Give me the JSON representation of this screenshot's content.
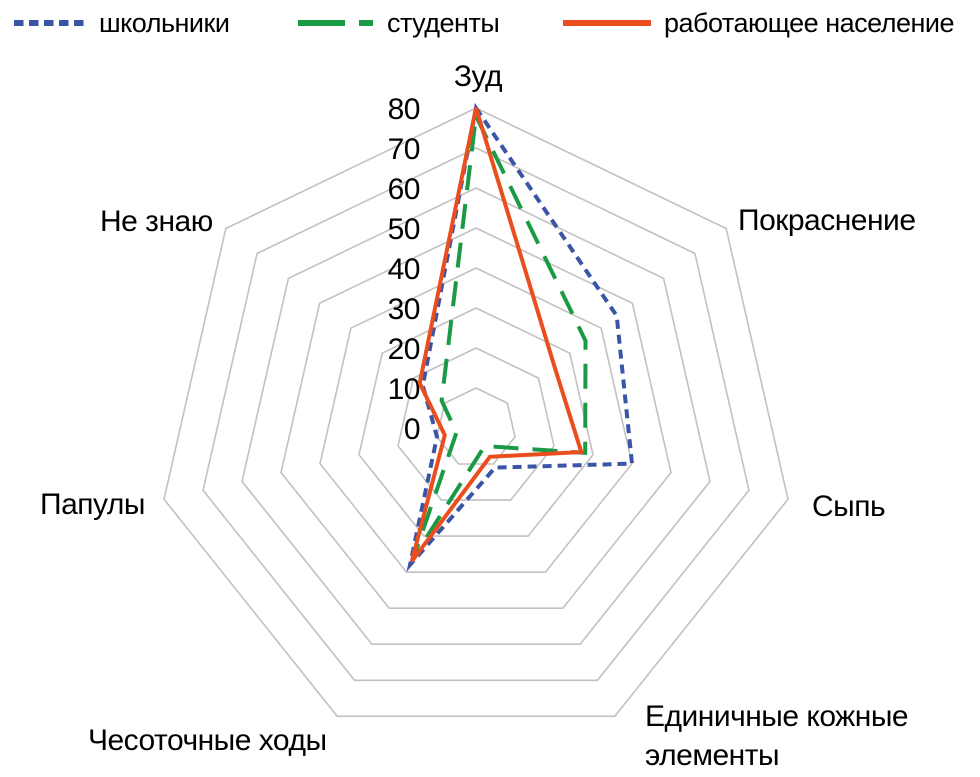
{
  "chart_data": {
    "type": "radar",
    "title": "",
    "categories": [
      "Зуд",
      "Покраснение",
      "Сыпь",
      "Единичные кожные элементы",
      "Чесоточные ходы",
      "Папулы",
      "Не знаю"
    ],
    "series": [
      {
        "name": "школьники",
        "color": "#3A55A5",
        "dash": "short-dash",
        "values": [
          80,
          45,
          40,
          11,
          38,
          10,
          17
        ]
      },
      {
        "name": "студенты",
        "color": "#1B9A46",
        "dash": "long-dash",
        "values": [
          78,
          35,
          28,
          5,
          36,
          5,
          11
        ]
      },
      {
        "name": "работающее население",
        "color": "#EA4E1F",
        "dash": "solid",
        "values": [
          80,
          25,
          27,
          8,
          37,
          8,
          18
        ]
      }
    ],
    "radial_axis": {
      "min": 0,
      "max": 80,
      "step": 10,
      "tick_labels": [
        "0",
        "10",
        "20",
        "30",
        "40",
        "50",
        "60",
        "70",
        "80"
      ]
    },
    "grid": true,
    "legend_position": "top"
  },
  "colors": {
    "grid": "#C1C1C1",
    "text": "#000000",
    "background": "#FFFFFF",
    "series_blue": "#3A55A5",
    "series_green": "#1B9A46",
    "series_orange": "#EA4E1F"
  }
}
